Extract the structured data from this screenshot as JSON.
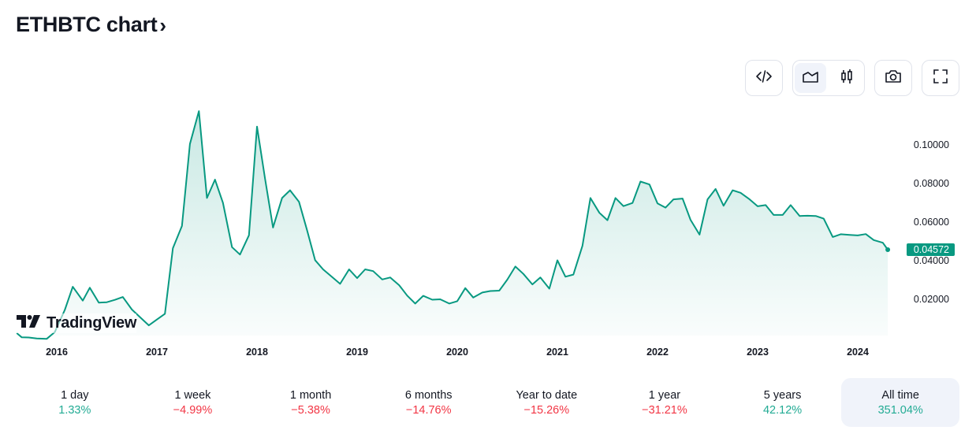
{
  "header": {
    "title": "ETHBTC chart",
    "chevron": "›"
  },
  "toolbar": {
    "items": [
      {
        "name": "embed-code-icon"
      },
      {
        "name": "area-chart-icon",
        "active": true
      },
      {
        "name": "candlestick-icon"
      },
      {
        "name": "camera-icon"
      },
      {
        "name": "fullscreen-icon"
      }
    ]
  },
  "branding": {
    "logo_text": "TradingView"
  },
  "colors": {
    "line": "#089981",
    "positive": "#22ab94",
    "negative": "#f23645",
    "active_bg": "#f0f3fa"
  },
  "chart_data": {
    "type": "area",
    "x_ticks": [
      "2016",
      "2017",
      "2018",
      "2019",
      "2020",
      "2021",
      "2022",
      "2023",
      "2024"
    ],
    "y_ticks": [
      "0.10000",
      "0.08000",
      "0.06000",
      "0.04000",
      "0.02000"
    ],
    "ylim": [
      0.0,
      0.12
    ],
    "last_value_label": "0.04572",
    "series": [
      {
        "x": [
          2015.6,
          2015.65,
          2015.72,
          2015.8,
          2015.9,
          2015.98,
          2016.08,
          2016.16,
          2016.26,
          2016.33,
          2016.42,
          2016.5,
          2016.58,
          2016.66,
          2016.75,
          2016.83,
          2016.92,
          2017.0,
          2017.08,
          2017.16,
          2017.25,
          2017.33,
          2017.42,
          2017.5,
          2017.58,
          2017.66,
          2017.75,
          2017.83,
          2017.92,
          2018.0,
          2018.08,
          2018.16,
          2018.25,
          2018.33,
          2018.42,
          2018.5,
          2018.58,
          2018.66,
          2018.75,
          2018.83,
          2018.92,
          2019.0,
          2019.08,
          2019.16,
          2019.25,
          2019.33,
          2019.42,
          2019.5,
          2019.58,
          2019.66,
          2019.75,
          2019.83,
          2019.92,
          2020.0,
          2020.08,
          2020.16,
          2020.25,
          2020.33,
          2020.42,
          2020.5,
          2020.58,
          2020.66,
          2020.75,
          2020.83,
          2020.92,
          2021.0,
          2021.08,
          2021.16,
          2021.25,
          2021.33,
          2021.42,
          2021.5,
          2021.58,
          2021.66,
          2021.75,
          2021.83,
          2021.92,
          2022.0,
          2022.08,
          2022.16,
          2022.25,
          2022.33,
          2022.42,
          2022.5,
          2022.58,
          2022.66,
          2022.75,
          2022.83,
          2022.92,
          2023.0,
          2023.08,
          2023.16,
          2023.25,
          2023.33,
          2023.42,
          2023.5,
          2023.58,
          2023.66,
          2023.75,
          2023.83,
          2023.92,
          2024.0,
          2024.08,
          2024.16,
          2024.25,
          2024.3
        ],
        "y": [
          0.0025,
          0.0003,
          0.0002,
          -0.0003,
          -0.0005,
          0.003,
          0.0145,
          0.0265,
          0.0193,
          0.026,
          0.0183,
          0.0185,
          0.0197,
          0.0212,
          0.0147,
          0.0108,
          0.0065,
          0.0095,
          0.0125,
          0.0465,
          0.058,
          0.1005,
          0.1175,
          0.0725,
          0.082,
          0.07,
          0.047,
          0.0432,
          0.0532,
          0.1095,
          0.0825,
          0.0572,
          0.0725,
          0.0765,
          0.0705,
          0.0558,
          0.0403,
          0.0355,
          0.0315,
          0.028,
          0.0355,
          0.031,
          0.0355,
          0.0346,
          0.0303,
          0.0313,
          0.0273,
          0.0219,
          0.0178,
          0.0218,
          0.0198,
          0.02,
          0.0178,
          0.019,
          0.0258,
          0.0209,
          0.0235,
          0.0243,
          0.0245,
          0.0302,
          0.037,
          0.0332,
          0.0277,
          0.0313,
          0.0255,
          0.0402,
          0.0317,
          0.0328,
          0.0477,
          0.0725,
          0.0648,
          0.061,
          0.0725,
          0.0683,
          0.0699,
          0.081,
          0.0795,
          0.0697,
          0.0675,
          0.0718,
          0.0722,
          0.0612,
          0.0535,
          0.0718,
          0.0772,
          0.0685,
          0.0765,
          0.0752,
          0.0718,
          0.0682,
          0.0688,
          0.0637,
          0.0637,
          0.0688,
          0.0632,
          0.0633,
          0.0632,
          0.0618,
          0.0523,
          0.0537,
          0.0534,
          0.0531,
          0.0538,
          0.0507,
          0.0493,
          0.0457
        ]
      }
    ]
  },
  "periods": [
    {
      "label": "1 day",
      "value": "1.33%",
      "trend": "pos"
    },
    {
      "label": "1 week",
      "value": "−4.99%",
      "trend": "neg"
    },
    {
      "label": "1 month",
      "value": "−5.38%",
      "trend": "neg"
    },
    {
      "label": "6 months",
      "value": "−14.76%",
      "trend": "neg"
    },
    {
      "label": "Year to date",
      "value": "−15.26%",
      "trend": "neg"
    },
    {
      "label": "1 year",
      "value": "−31.21%",
      "trend": "neg"
    },
    {
      "label": "5 years",
      "value": "42.12%",
      "trend": "pos"
    },
    {
      "label": "All time",
      "value": "351.04%",
      "trend": "pos",
      "active": true
    }
  ]
}
